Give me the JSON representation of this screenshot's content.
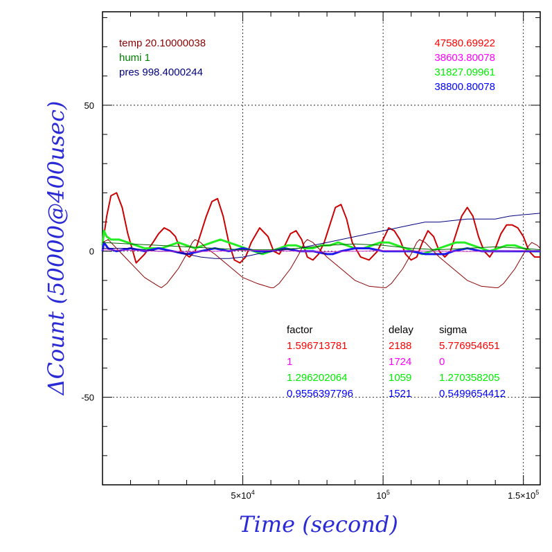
{
  "chart_data": {
    "type": "line",
    "xlabel": "Time (second)",
    "ylabel": "ΔCount (50000@400usec)",
    "xlim": [
      0,
      156000
    ],
    "ylim": [
      -80,
      82
    ],
    "grid": true,
    "x_ticks": [
      {
        "value": 50000,
        "label_base": "5×10",
        "label_exp": "4"
      },
      {
        "value": 100000,
        "label_base": "10",
        "label_exp": "5"
      },
      {
        "value": 150000,
        "label_base": "1.5×10",
        "label_exp": "5"
      }
    ],
    "y_ticks": [
      {
        "value": 50,
        "label": "50"
      },
      {
        "value": 0,
        "label": "0"
      },
      {
        "value": -50,
        "label": "-50"
      }
    ],
    "env_labels": [
      {
        "text": "temp 20.10000038",
        "color": "#8b0000"
      },
      {
        "text": "humi 1",
        "color": "#008000"
      },
      {
        "text": "pres 998.4000244",
        "color": "#000080"
      }
    ],
    "ref_values": [
      {
        "text": "47580.69922",
        "color": "#ff0000"
      },
      {
        "text": "38603.80078",
        "color": "#ff00ff"
      },
      {
        "text": "31827.09961",
        "color": "#00ee00"
      },
      {
        "text": "38800.80078",
        "color": "#0000ff"
      }
    ],
    "fit_table": {
      "headers": [
        "factor",
        "delay",
        "sigma"
      ],
      "rows": [
        {
          "factor": "1.596713781",
          "delay": "2188",
          "sigma": "5.776954651",
          "color": "#ff0000"
        },
        {
          "factor": "1",
          "delay": "1724",
          "sigma": "0",
          "color": "#ff00ff"
        },
        {
          "factor": "1.296202064",
          "delay": "1059",
          "sigma": "1.270358205",
          "color": "#00ee00"
        },
        {
          "factor": "0.9556397796",
          "delay": "1521",
          "sigma": "0.5499654412",
          "color": "#0000ff"
        }
      ]
    },
    "series": [
      {
        "color": "#cc0000",
        "width": 2,
        "x": [
          0,
          1500,
          3000,
          5000,
          7000,
          9000,
          12000,
          15000,
          18000,
          20000,
          22000,
          24000,
          26000,
          28000,
          31000,
          33000,
          35000,
          37000,
          39000,
          41000,
          43000,
          45000,
          47000,
          49000,
          51000,
          53000,
          56000,
          59000,
          61000,
          63000,
          65000,
          67000,
          69000,
          71000,
          73000,
          75000,
          77000,
          79000,
          81000,
          83000,
          85000,
          87000,
          89000,
          92000,
          95000,
          98000,
          100000,
          102000,
          104000,
          106000,
          108000,
          110000,
          112000,
          114000,
          116000,
          118000,
          120000,
          122000,
          124000,
          126000,
          128000,
          130000,
          132000,
          134000,
          136000,
          138000,
          140000,
          142000,
          144000,
          146000,
          148000,
          150000,
          152000,
          154000,
          156000
        ],
        "y": [
          2,
          12,
          19,
          20,
          15,
          6,
          -4,
          -1,
          3,
          6,
          8,
          7,
          5,
          0,
          -2,
          0,
          6,
          12,
          17,
          18,
          12,
          3,
          -3,
          -4,
          -2,
          3,
          8,
          5,
          0,
          -1,
          2,
          6,
          7,
          4,
          -2,
          -3,
          -1,
          3,
          9,
          15,
          16,
          11,
          3,
          -2,
          -3,
          0,
          4,
          8,
          7,
          4,
          -1,
          -3,
          -2,
          3,
          7,
          5,
          0,
          -2,
          0,
          6,
          12,
          15,
          12,
          5,
          0,
          -2,
          1,
          6,
          9,
          9,
          8,
          5,
          0,
          -2,
          -2
        ]
      },
      {
        "color": "#22ee22",
        "width": 3,
        "x": [
          0,
          500,
          1500,
          3000,
          6000,
          9000,
          12000,
          15000,
          18000,
          21000,
          24000,
          27000,
          30000,
          33000,
          36000,
          39000,
          42000,
          45000,
          48000,
          51000,
          54000,
          57000,
          60000,
          63000,
          66000,
          69000,
          72000,
          75000,
          78000,
          81000,
          84000,
          87000,
          90000,
          93000,
          96000,
          99000,
          102000,
          105000,
          108000,
          111000,
          114000,
          117000,
          120000,
          123000,
          126000,
          129000,
          132000,
          135000,
          138000,
          141000,
          144000,
          147000,
          150000,
          153000,
          156000
        ],
        "y": [
          2,
          7,
          5,
          4,
          4,
          3,
          2,
          1,
          1,
          1,
          2,
          3,
          2,
          1,
          2,
          3,
          4,
          3,
          2,
          1,
          0,
          -1,
          0,
          1,
          2,
          2,
          1,
          1,
          2,
          2,
          3,
          2,
          1,
          1,
          2,
          3,
          3,
          2,
          1,
          0,
          -1,
          0,
          1,
          2,
          3,
          3,
          2,
          1,
          0,
          1,
          2,
          2,
          1,
          0,
          0
        ]
      },
      {
        "color": "#1a1aee",
        "width": 3,
        "x": [
          0,
          500,
          2000,
          5000,
          10000,
          15000,
          20000,
          25000,
          30000,
          35000,
          40000,
          45000,
          50000,
          55000,
          60000,
          65000,
          70000,
          75000,
          80000,
          82000,
          85000,
          90000,
          95000,
          100000,
          105000,
          110000,
          115000,
          120000,
          122000,
          125000,
          130000,
          135000,
          140000,
          145000,
          150000,
          156000
        ],
        "y": [
          0,
          3,
          1,
          0,
          1,
          0,
          1,
          0,
          -1,
          0,
          1,
          0,
          1,
          0,
          0,
          1,
          0,
          0,
          -1,
          -1,
          0,
          1,
          1,
          0,
          0,
          0,
          -1,
          -1,
          -1,
          0,
          1,
          0,
          0,
          0,
          0,
          0
        ]
      },
      {
        "color": "#000080",
        "width": 1,
        "x": [
          0,
          5000,
          10000,
          15000,
          20000,
          25000,
          30000,
          35000,
          40000,
          45000,
          50000,
          55000,
          60000,
          65000,
          70000,
          75000,
          80000,
          85000,
          90000,
          95000,
          100000,
          105000,
          110000,
          115000,
          120000,
          125000,
          130000,
          135000,
          140000,
          145000,
          150000,
          156000
        ],
        "y": [
          1,
          1,
          1,
          0.5,
          0,
          0,
          -1,
          -2,
          -2.5,
          -2.5,
          -2,
          -1,
          0,
          0.5,
          1,
          2,
          3,
          4,
          5,
          6,
          7,
          8,
          9,
          10,
          10,
          10.5,
          11,
          11,
          11,
          12,
          12.5,
          13
        ]
      },
      {
        "color": "#8b0000",
        "width": 1,
        "x": [
          0,
          2000,
          5000,
          10000,
          15000,
          20000,
          21000,
          23000,
          27000,
          30000,
          32000,
          33000,
          35000,
          37000,
          40000,
          45000,
          50000,
          55000,
          60000,
          61000,
          63000,
          67000,
          70000,
          72000,
          73000,
          75000,
          77000,
          80000,
          85000,
          90000,
          95000,
          100000,
          101000,
          103000,
          107000,
          110000,
          112000,
          113000,
          115000,
          117000,
          120000,
          125000,
          130000,
          135000,
          140000,
          141000,
          143000,
          147000,
          150000,
          152000,
          153000,
          155000,
          156000
        ],
        "y": [
          3,
          4,
          1,
          -4,
          -9,
          -12,
          -12.5,
          -11,
          -6,
          -1,
          3,
          4,
          3,
          1,
          -1,
          -5,
          -9,
          -11,
          -12.5,
          -12.5,
          -11,
          -6,
          -1,
          3,
          4,
          3,
          1,
          -2,
          -6,
          -10,
          -12,
          -12.5,
          -12.5,
          -11,
          -6,
          -1,
          3,
          4,
          3,
          1,
          -2,
          -6,
          -10,
          -12,
          -12.5,
          -12.5,
          -11,
          -6,
          -1,
          2,
          3,
          2,
          1
        ]
      },
      {
        "color": "#006400",
        "width": 1,
        "x": [
          0,
          10000,
          20000,
          30000,
          40000,
          50000,
          60000,
          70000,
          80000,
          90000,
          100000,
          110000,
          120000,
          130000,
          140000,
          150000,
          156000
        ],
        "y": [
          3,
          2.5,
          2,
          1.5,
          1,
          0.5,
          0.5,
          1,
          2,
          2.5,
          2,
          1,
          0.5,
          1,
          1.5,
          1,
          0.5
        ]
      },
      {
        "color": "#cc33cc",
        "width": 1,
        "x": [
          0,
          10000,
          20000,
          30000,
          40000,
          50000,
          60000,
          70000,
          80000,
          90000,
          100000,
          110000,
          120000,
          130000,
          140000,
          150000,
          156000
        ],
        "y": [
          0.5,
          0.3,
          0,
          -0.2,
          0,
          0.3,
          0.2,
          0,
          -0.2,
          0,
          0.2,
          0.1,
          0,
          -0.1,
          0,
          0.2,
          0.1
        ]
      }
    ]
  }
}
